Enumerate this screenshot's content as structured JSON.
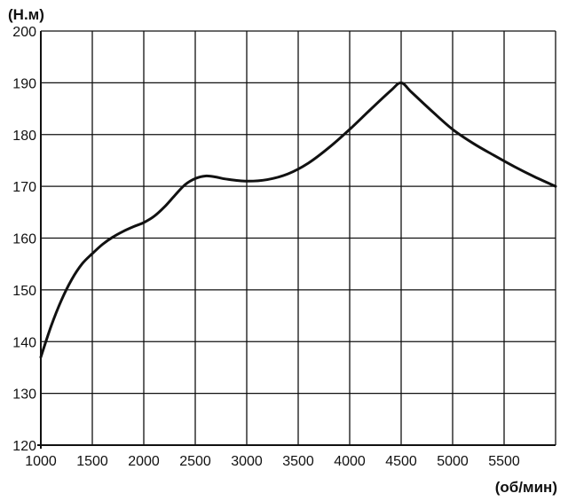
{
  "chart_data": {
    "type": "line",
    "title": "",
    "ylabel": "(Н.м)",
    "xlabel": "(об/мин)",
    "xlim": [
      1000,
      6000
    ],
    "ylim": [
      120,
      200
    ],
    "x_ticks": [
      1000,
      1500,
      2000,
      2500,
      3000,
      3500,
      4000,
      4500,
      5000,
      5500
    ],
    "x_tick_labels": [
      "1000",
      "1500",
      "2000",
      "2500",
      "3000",
      "3500",
      "4000",
      "4500",
      "5000",
      "5500"
    ],
    "y_ticks": [
      120,
      130,
      140,
      150,
      160,
      170,
      180,
      190,
      200
    ],
    "y_tick_labels": [
      "120",
      "130",
      "140",
      "150",
      "160",
      "170",
      "180",
      "190",
      "200"
    ],
    "grid": true,
    "legend": "none",
    "colors": {
      "line": "#111111",
      "grid": "#111111",
      "background": "#ffffff"
    },
    "series": [
      {
        "x": [
          1000,
          1100,
          1200,
          1300,
          1400,
          1500,
          1600,
          1700,
          1800,
          1900,
          2000,
          2100,
          2200,
          2300,
          2400,
          2500,
          2600,
          2700,
          2800,
          3000,
          3200,
          3400,
          3600,
          3800,
          4000,
          4200,
          4400,
          4500,
          4600,
          4800,
          5000,
          5200,
          5400,
          5600,
          5800,
          6000
        ],
        "y": [
          137,
          143,
          148,
          152,
          155,
          157,
          158.8,
          160.2,
          161.3,
          162.2,
          163,
          164.2,
          166,
          168.2,
          170.3,
          171.5,
          172,
          171.8,
          171.4,
          171,
          171.3,
          172.4,
          174.5,
          177.5,
          181,
          184.8,
          188.5,
          190,
          188.2,
          184.5,
          181,
          178.3,
          176,
          173.8,
          171.8,
          170
        ]
      }
    ]
  }
}
